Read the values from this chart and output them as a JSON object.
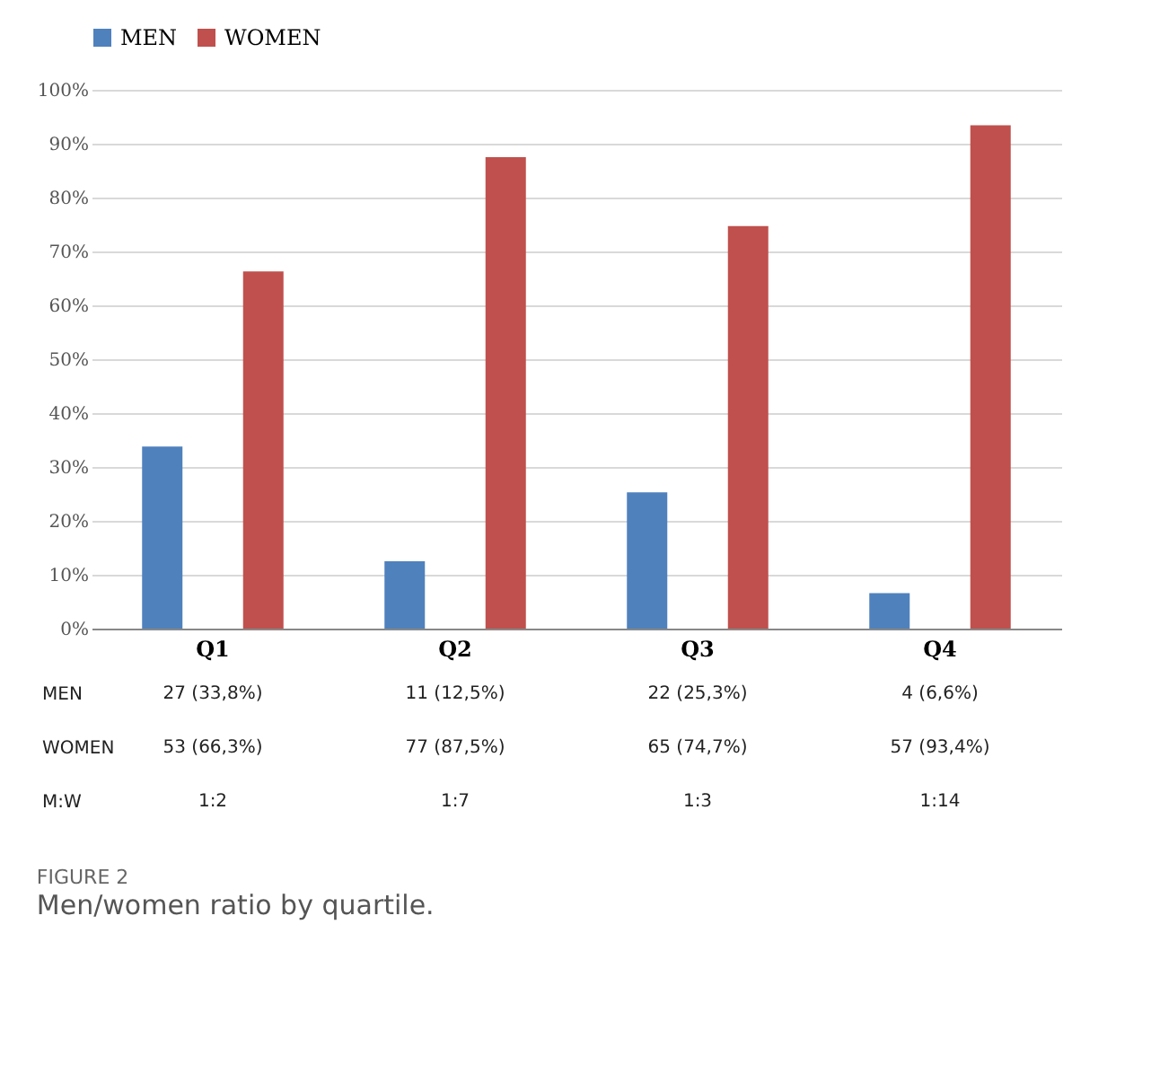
{
  "chart_data": {
    "type": "bar",
    "categories": [
      "Q1",
      "Q2",
      "Q3",
      "Q4"
    ],
    "series": [
      {
        "name": "MEN",
        "color": "#4f81bd",
        "values": [
          33.8,
          12.5,
          25.3,
          6.6
        ],
        "value_labels": [
          "27 (33,8%)",
          "11 (12,5%)",
          "22 (25,3%)",
          "4 (6,6%)"
        ]
      },
      {
        "name": "WOMEN",
        "color": "#c0504d",
        "values": [
          66.3,
          87.5,
          74.7,
          93.4
        ],
        "value_labels": [
          "53 (66,3%)",
          "77 (87,5%)",
          "65 (74,7%)",
          "57 (93,4%)"
        ]
      }
    ],
    "ylim": [
      0,
      100
    ],
    "yticks": [
      {
        "value": 0,
        "label": "0%"
      },
      {
        "value": 10,
        "label": "10%"
      },
      {
        "value": 20,
        "label": "20%"
      },
      {
        "value": 30,
        "label": "30%"
      },
      {
        "value": 40,
        "label": "40%"
      },
      {
        "value": 50,
        "label": "50%"
      },
      {
        "value": 60,
        "label": "60%"
      },
      {
        "value": 70,
        "label": "70%"
      },
      {
        "value": 80,
        "label": "80%"
      },
      {
        "value": 90,
        "label": "90%"
      },
      {
        "value": 100,
        "label": "100%"
      }
    ],
    "grid": "y",
    "legend": "top",
    "annotations": [
      "M:W",
      "1:2",
      "1:7",
      "1:3",
      "1:14",
      "FIGURE 2",
      "Men/women ratio by quartile."
    ]
  }
}
